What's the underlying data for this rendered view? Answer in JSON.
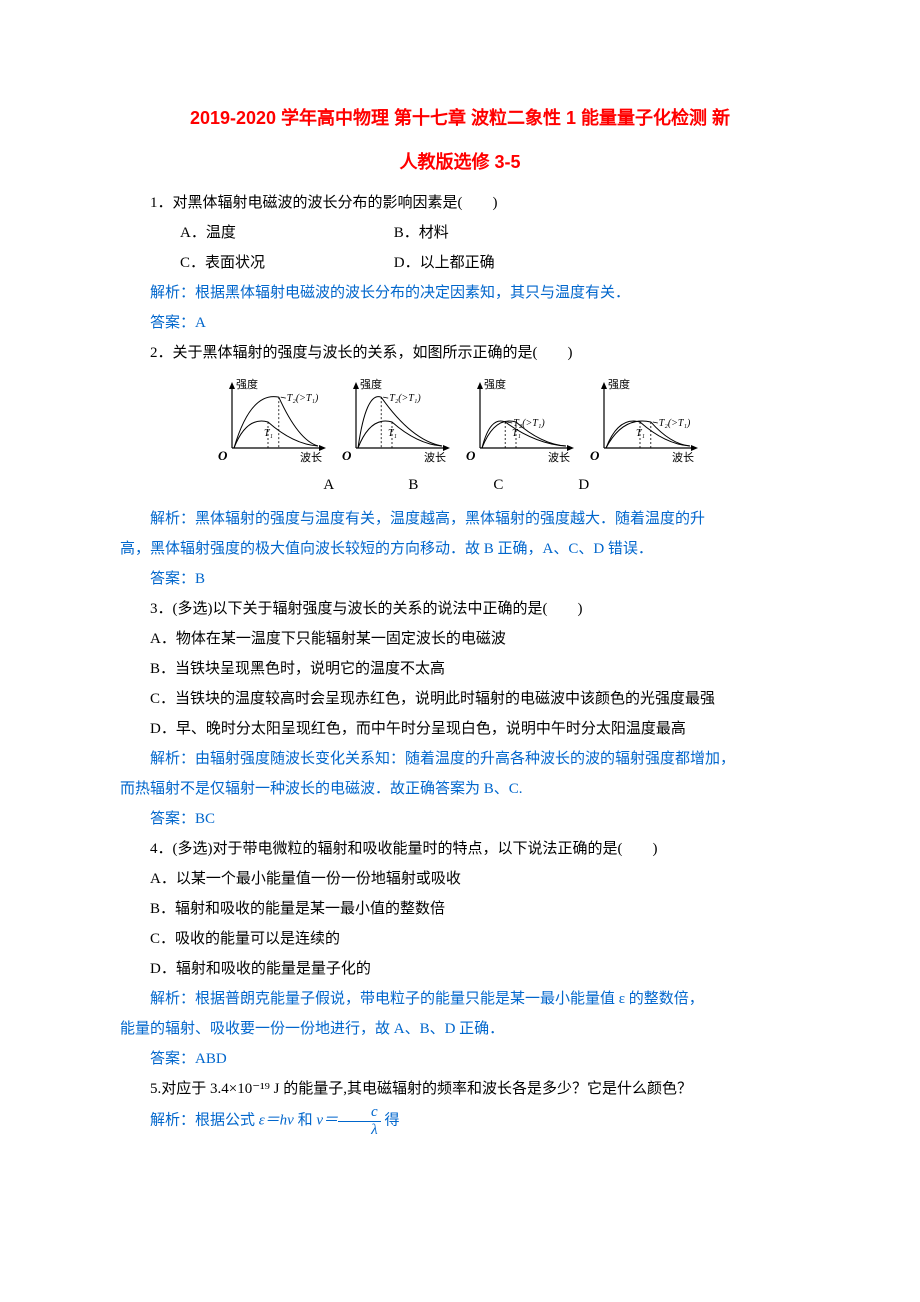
{
  "title_line1": "2019-2020 学年高中物理 第十七章 波粒二象性 1 能量量子化检测 新",
  "title_line2": "人教版选修 3-5",
  "q1": {
    "stem": "1．对黑体辐射电磁波的波长分布的影响因素是(　　)",
    "optA": "A．温度",
    "optB": "B．材料",
    "optC": "C．表面状况",
    "optD": "D．以上都正确",
    "expl": "解析：根据黑体辐射电磁波的波长分布的决定因素知，其只与温度有关．",
    "ans": "答案：A"
  },
  "q2": {
    "stem": "2．关于黑体辐射的强度与波长的关系，如图所示正确的是(　　)",
    "labels": "A　　　B　　　C　　　D",
    "expl1": "解析：黑体辐射的强度与温度有关，温度越高，黑体辐射的强度越大．随着温度的升",
    "expl2": "高，黑体辐射强度的极大值向波长较短的方向移动．故 B 正确，A、C、D 错误．",
    "ans": "答案：B",
    "charts": {
      "y_label": "强度",
      "x_label": "波长",
      "t1_label": "T₁",
      "t2_label": "T₂(>T₁)",
      "axis_color": "#000000",
      "curve_color": "#000000",
      "width": 120,
      "height": 90,
      "variants": [
        {
          "t2_higher": true,
          "t2_peak_left": false
        },
        {
          "t2_higher": true,
          "t2_peak_left": true
        },
        {
          "t2_higher": false,
          "t2_peak_left": true
        },
        {
          "t2_higher": false,
          "t2_peak_left": false
        }
      ]
    }
  },
  "q3": {
    "stem": "3．(多选)以下关于辐射强度与波长的关系的说法中正确的是(　　)",
    "optA": "A．物体在某一温度下只能辐射某一固定波长的电磁波",
    "optB": "B．当铁块呈现黑色时，说明它的温度不太高",
    "optC": "C．当铁块的温度较高时会呈现赤红色，说明此时辐射的电磁波中该颜色的光强度最强",
    "optD": "D．早、晚时分太阳呈现红色，而中午时分呈现白色，说明中午时分太阳温度最高",
    "expl1": "解析：由辐射强度随波长变化关系知：随着温度的升高各种波长的波的辐射强度都增加，",
    "expl2": "而热辐射不是仅辐射一种波长的电磁波．故正确答案为 B、C.",
    "ans": "答案：BC"
  },
  "q4": {
    "stem": "4．(多选)对于带电微粒的辐射和吸收能量时的特点，以下说法正确的是(　　)",
    "optA": "A．以某一个最小能量值一份一份地辐射或吸收",
    "optB": "B．辐射和吸收的能量是某一最小值的整数倍",
    "optC": "C．吸收的能量可以是连续的",
    "optD": "D．辐射和吸收的能量是量子化的",
    "expl1": "解析：根据普朗克能量子假说，带电粒子的能量只能是某一最小能量值 ε 的整数倍，",
    "expl2": "能量的辐射、吸收要一份一份地进行，故 A、B、D 正确．",
    "ans": "答案：ABD"
  },
  "q5": {
    "stem": "5.对应于 3.4×10⁻¹⁹ J 的能量子,其电磁辐射的频率和波长各是多少？它是什么颜色？",
    "expl_prefix": "解析：根据公式 ",
    "formula1": "ε＝hν",
    "mid": " 和 ",
    "formula2_lhs": "ν＝",
    "frac_num": "c",
    "frac_den": "λ",
    "suffix": "得"
  }
}
